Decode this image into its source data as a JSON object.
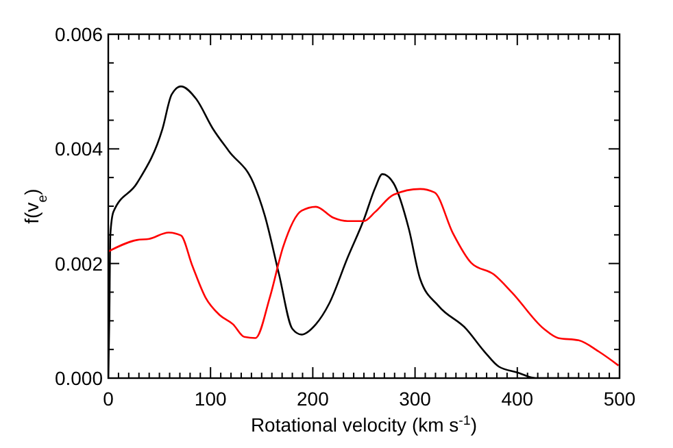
{
  "chart_data": {
    "type": "line",
    "xlabel": "Rotational velocity (km s$^{-1}$)",
    "ylabel": "f(v$_{e}$)",
    "xlim": [
      0,
      500
    ],
    "ylim": [
      0,
      0.006
    ],
    "xticks": [
      0,
      {
        "value": 10,
        "label": null
      },
      {
        "value": 20,
        "label": null
      },
      {
        "value": 30,
        "label": null
      },
      {
        "value": 40,
        "label": null
      },
      {
        "value": 50,
        "label": null
      },
      {
        "value": 60,
        "label": null
      },
      {
        "value": 70,
        "label": null
      },
      {
        "value": 80,
        "label": null
      },
      {
        "value": 90,
        "label": null
      },
      100,
      {
        "value": 110,
        "label": null
      },
      {
        "value": 120,
        "label": null
      },
      {
        "value": 130,
        "label": null
      },
      {
        "value": 140,
        "label": null
      },
      {
        "value": 150,
        "label": null
      },
      {
        "value": 160,
        "label": null
      },
      {
        "value": 170,
        "label": null
      },
      {
        "value": 180,
        "label": null
      },
      {
        "value": 190,
        "label": null
      },
      200,
      {
        "value": 210,
        "label": null
      },
      {
        "value": 220,
        "label": null
      },
      {
        "value": 230,
        "label": null
      },
      {
        "value": 240,
        "label": null
      },
      {
        "value": 250,
        "label": null
      },
      {
        "value": 260,
        "label": null
      },
      {
        "value": 270,
        "label": null
      },
      {
        "value": 280,
        "label": null
      },
      {
        "value": 290,
        "label": null
      },
      300,
      {
        "value": 310,
        "label": null
      },
      {
        "value": 320,
        "label": null
      },
      {
        "value": 330,
        "label": null
      },
      {
        "value": 340,
        "label": null
      },
      {
        "value": 350,
        "label": null
      },
      {
        "value": 360,
        "label": null
      },
      {
        "value": 370,
        "label": null
      },
      {
        "value": 380,
        "label": null
      },
      {
        "value": 390,
        "label": null
      },
      400,
      {
        "value": 410,
        "label": null
      },
      {
        "value": 420,
        "label": null
      },
      {
        "value": 430,
        "label": null
      },
      {
        "value": 440,
        "label": null
      },
      {
        "value": 450,
        "label": null
      },
      {
        "value": 460,
        "label": null
      },
      {
        "value": 470,
        "label": null
      },
      {
        "value": 480,
        "label": null
      },
      {
        "value": 490,
        "label": null
      },
      500
    ],
    "yticks": [
      {
        "value": 0,
        "label": "0.000"
      },
      {
        "value": 0.0005,
        "label": null
      },
      {
        "value": 0.001,
        "label": null
      },
      {
        "value": 0.0015,
        "label": null
      },
      {
        "value": 0.002,
        "label": "0.002"
      },
      {
        "value": 0.0025,
        "label": null
      },
      {
        "value": 0.003,
        "label": null
      },
      {
        "value": 0.0035,
        "label": null
      },
      {
        "value": 0.004,
        "label": "0.004"
      },
      {
        "value": 0.0045,
        "label": null
      },
      {
        "value": 0.005,
        "label": null
      },
      {
        "value": 0.0055,
        "label": null
      },
      {
        "value": 0.006,
        "label": "0.006"
      }
    ],
    "grid": false,
    "line_style": "solid",
    "series": [
      {
        "color": "#000000",
        "x": [
          0,
          1,
          2,
          5,
          28,
          53,
          62,
          71,
          86,
          102,
          118,
          142,
          153,
          167,
          180,
          189,
          203,
          216,
          234,
          250,
          261,
          268,
          279,
          294,
          305,
          323,
          350,
          368,
          382,
          400,
          418,
          440,
          460
        ],
        "values": [
          0,
          0.001,
          0.0025,
          0.0029,
          0.0034,
          0.00435,
          0.00495,
          0.00509,
          0.00487,
          0.00436,
          0.00396,
          0.0034,
          0.00284,
          0.00181,
          0.00086,
          0.00076,
          0.00094,
          0.0013,
          0.0021,
          0.00277,
          0.00332,
          0.00356,
          0.0034,
          0.0026,
          0.00173,
          0.00126,
          0.00086,
          0.00046,
          0.0002,
          0.0001,
          0,
          0,
          0
        ]
      },
      {
        "color": "#ff0000",
        "x": [
          0,
          28,
          40,
          59,
          71,
          82,
          95,
          109,
          122,
          133,
          144,
          158,
          171,
          189,
          203,
          220,
          234,
          250,
          261,
          279,
          305,
          319,
          337,
          355,
          377,
          395,
          426,
          440,
          460,
          480,
          499
        ],
        "values": [
          0.00221,
          0.00241,
          0.00243,
          0.00254,
          0.00249,
          0.00197,
          0.00141,
          0.0011,
          0.00094,
          0.00072,
          0.0007,
          0.00141,
          0.00229,
          0.00292,
          0.00299,
          0.0028,
          0.00274,
          0.00274,
          0.0029,
          0.0032,
          0.0033,
          0.00324,
          0.00253,
          0.00201,
          0.00181,
          0.00149,
          0.00086,
          0.0007,
          0.00066,
          0.00046,
          0.00022
        ]
      }
    ]
  }
}
